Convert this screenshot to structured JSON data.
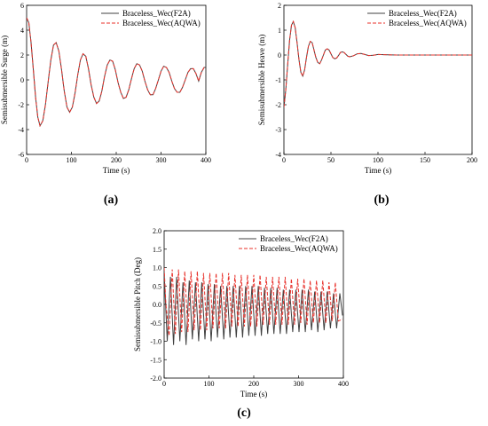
{
  "chart_data": [
    {
      "type": "line",
      "panel_label": "(a)",
      "xlabel": "Time (s)",
      "ylabel": "Semisubmersible Surge (m)",
      "xlim": [
        0,
        400
      ],
      "ylim": [
        -6,
        6
      ],
      "xticks": [
        0,
        100,
        200,
        300,
        400
      ],
      "yticks": [
        -6,
        -4,
        -2,
        0,
        2,
        4,
        6
      ],
      "legend_position": "top-right",
      "series": [
        {
          "name": "Braceless_Wec(F2A)",
          "color": "#404040",
          "style": "solid",
          "x": [
            0,
            5,
            10,
            15,
            20,
            25,
            30,
            36,
            42,
            48,
            54,
            60,
            66,
            72,
            78,
            84,
            90,
            96,
            102,
            108,
            114,
            120,
            126,
            132,
            138,
            144,
            150,
            156,
            162,
            168,
            174,
            180,
            186,
            192,
            198,
            204,
            210,
            216,
            222,
            228,
            234,
            240,
            246,
            252,
            258,
            264,
            270,
            276,
            282,
            288,
            294,
            300,
            306,
            312,
            318,
            324,
            330,
            336,
            342,
            348,
            354,
            360,
            366,
            372,
            378,
            384,
            390,
            396,
            400
          ],
          "y": [
            5.0,
            4.6,
            3.0,
            0.8,
            -1.4,
            -3.0,
            -3.7,
            -3.3,
            -2.0,
            -0.2,
            1.6,
            2.8,
            3.0,
            2.3,
            0.8,
            -0.9,
            -2.2,
            -2.6,
            -2.2,
            -1.1,
            0.4,
            1.6,
            2.1,
            1.9,
            0.9,
            -0.4,
            -1.4,
            -1.9,
            -1.7,
            -0.9,
            0.3,
            1.2,
            1.6,
            1.5,
            0.8,
            -0.2,
            -1.0,
            -1.5,
            -1.4,
            -0.8,
            0.1,
            0.9,
            1.3,
            1.2,
            0.7,
            -0.1,
            -0.8,
            -1.2,
            -1.2,
            -0.7,
            0.0,
            0.7,
            1.1,
            1.0,
            0.6,
            -0.1,
            -0.7,
            -1.0,
            -1.0,
            -0.6,
            0.0,
            0.6,
            0.9,
            0.9,
            0.5,
            -0.1,
            0.6,
            1.0,
            1.0
          ]
        },
        {
          "name": "Braceless_Wec(AQWA)",
          "color": "#e8302a",
          "style": "dashed",
          "x": [
            0,
            5,
            10,
            15,
            20,
            25,
            30,
            36,
            42,
            48,
            54,
            60,
            66,
            72,
            78,
            84,
            90,
            96,
            102,
            108,
            114,
            120,
            126,
            132,
            138,
            144,
            150,
            156,
            162,
            168,
            174,
            180,
            186,
            192,
            198,
            204,
            210,
            216,
            222,
            228,
            234,
            240,
            246,
            252,
            258,
            264,
            270,
            276,
            282,
            288,
            294,
            300,
            306,
            312,
            318,
            324,
            330,
            336,
            342,
            348,
            354,
            360,
            366,
            372,
            378,
            384,
            390,
            396,
            400
          ],
          "y": [
            5.0,
            4.6,
            3.0,
            0.8,
            -1.4,
            -3.0,
            -3.7,
            -3.3,
            -2.0,
            -0.2,
            1.6,
            2.8,
            3.0,
            2.3,
            0.8,
            -0.9,
            -2.2,
            -2.6,
            -2.2,
            -1.1,
            0.4,
            1.6,
            2.1,
            1.9,
            0.9,
            -0.4,
            -1.4,
            -1.9,
            -1.7,
            -0.9,
            0.3,
            1.2,
            1.6,
            1.5,
            0.8,
            -0.2,
            -1.0,
            -1.5,
            -1.4,
            -0.8,
            0.1,
            0.9,
            1.3,
            1.2,
            0.7,
            -0.1,
            -0.8,
            -1.2,
            -1.2,
            -0.7,
            0.0,
            0.7,
            1.1,
            1.0,
            0.6,
            -0.1,
            -0.7,
            -1.0,
            -1.0,
            -0.6,
            0.0,
            0.6,
            0.9,
            0.9,
            0.5,
            -0.1,
            0.6,
            1.0,
            1.0
          ]
        }
      ]
    },
    {
      "type": "line",
      "panel_label": "(b)",
      "xlabel": "Time (s)",
      "ylabel": "Semisubmersible Heave (m)",
      "xlim": [
        0,
        200
      ],
      "ylim": [
        -4,
        2
      ],
      "xticks": [
        0,
        50,
        100,
        150,
        200
      ],
      "yticks": [
        -4,
        -3,
        -2,
        -1,
        0,
        1,
        2
      ],
      "legend_position": "top-right",
      "series": [
        {
          "name": "Braceless_Wec(F2A)",
          "color": "#404040",
          "style": "solid",
          "x": [
            0,
            2,
            4,
            6,
            8,
            10,
            12,
            14,
            16,
            18,
            20,
            22,
            24,
            26,
            28,
            30,
            32,
            34,
            36,
            38,
            40,
            42,
            44,
            46,
            48,
            50,
            52,
            54,
            56,
            58,
            60,
            62,
            64,
            66,
            68,
            70,
            74,
            78,
            82,
            86,
            90,
            95,
            100,
            110,
            120,
            130,
            140,
            150,
            160,
            170,
            180,
            190,
            200
          ],
          "y": [
            -2.1,
            -1.4,
            -0.4,
            0.6,
            1.2,
            1.35,
            1.1,
            0.5,
            -0.2,
            -0.7,
            -0.85,
            -0.6,
            -0.1,
            0.35,
            0.55,
            0.5,
            0.2,
            -0.1,
            -0.3,
            -0.35,
            -0.2,
            0.0,
            0.2,
            0.25,
            0.2,
            0.05,
            -0.1,
            -0.15,
            -0.12,
            -0.02,
            0.1,
            0.13,
            0.1,
            0.02,
            -0.05,
            -0.07,
            -0.03,
            0.05,
            0.06,
            0.02,
            -0.02,
            -0.01,
            0.02,
            0.01,
            0.0,
            0.0,
            0.0,
            0.0,
            0.0,
            0.0,
            0.0,
            0.0,
            0.0
          ]
        },
        {
          "name": "Braceless_Wec(AQWA)",
          "color": "#e8302a",
          "style": "dashed",
          "x": [
            0,
            2,
            4,
            6,
            8,
            10,
            12,
            14,
            16,
            18,
            20,
            22,
            24,
            26,
            28,
            30,
            32,
            34,
            36,
            38,
            40,
            42,
            44,
            46,
            48,
            50,
            52,
            54,
            56,
            58,
            60,
            62,
            64,
            66,
            68,
            70,
            74,
            78,
            82,
            86,
            90,
            95,
            100,
            110,
            120,
            130,
            140,
            150,
            160,
            170,
            180,
            190,
            200
          ],
          "y": [
            -2.1,
            -1.4,
            -0.4,
            0.6,
            1.2,
            1.35,
            1.1,
            0.5,
            -0.2,
            -0.7,
            -0.85,
            -0.6,
            -0.1,
            0.35,
            0.55,
            0.5,
            0.2,
            -0.1,
            -0.3,
            -0.35,
            -0.2,
            0.0,
            0.2,
            0.25,
            0.2,
            0.05,
            -0.1,
            -0.15,
            -0.12,
            -0.02,
            0.1,
            0.13,
            0.1,
            0.02,
            -0.05,
            -0.07,
            -0.03,
            0.05,
            0.06,
            0.02,
            -0.02,
            -0.01,
            0.02,
            0.01,
            0.0,
            0.0,
            0.0,
            0.0,
            0.0,
            0.0,
            0.0,
            0.0,
            0.0
          ]
        }
      ]
    },
    {
      "type": "line",
      "panel_label": "(c)",
      "xlabel": "Time (s)",
      "ylabel": "Semisubmersible Pitch (Deg)",
      "xlim": [
        0,
        400
      ],
      "ylim": [
        -2.0,
        2.0
      ],
      "xticks": [
        0,
        100,
        200,
        300,
        400
      ],
      "yticks": [
        -2.0,
        -1.5,
        -1.0,
        -0.5,
        0.0,
        0.5,
        1.0,
        1.5,
        2.0
      ],
      "legend_position": "top-right",
      "series": [
        {
          "name": "Braceless_Wec(F2A)",
          "color": "#404040",
          "style": "solid",
          "x": [
            0,
            7,
            14,
            21,
            28,
            35,
            42,
            49,
            56,
            63,
            70,
            77,
            84,
            91,
            98,
            105,
            112,
            119,
            126,
            133,
            140,
            147,
            154,
            161,
            168,
            175,
            182,
            189,
            196,
            203,
            210,
            217,
            224,
            231,
            238,
            245,
            252,
            259,
            266,
            273,
            280,
            287,
            294,
            301,
            308,
            315,
            322,
            329,
            336,
            343,
            350,
            357,
            364,
            371,
            378,
            385,
            392,
            398
          ],
          "y": [
            0.85,
            -1.0,
            0.75,
            -1.1,
            0.75,
            -1.0,
            0.6,
            -1.1,
            0.65,
            -0.95,
            0.6,
            -1.0,
            0.6,
            -0.95,
            0.55,
            -1.0,
            0.55,
            -0.9,
            0.5,
            -0.95,
            0.5,
            -0.9,
            0.5,
            -0.9,
            0.5,
            -0.9,
            0.5,
            -0.85,
            0.5,
            -0.85,
            0.5,
            -0.85,
            0.45,
            -0.8,
            0.45,
            -0.8,
            0.45,
            -0.8,
            0.4,
            -0.8,
            0.4,
            -0.75,
            0.4,
            -0.75,
            0.4,
            -0.75,
            0.4,
            -0.7,
            0.35,
            -0.75,
            0.35,
            -0.7,
            0.35,
            -0.65,
            0.3,
            -0.65,
            0.3,
            -0.3
          ]
        },
        {
          "name": "Braceless_Wec(AQWA)",
          "color": "#e8302a",
          "style": "dashed",
          "x": [
            0,
            4,
            11,
            18,
            25,
            32,
            39,
            46,
            53,
            60,
            67,
            74,
            81,
            88,
            95,
            102,
            109,
            116,
            123,
            130,
            137,
            144,
            151,
            158,
            165,
            172,
            179,
            186,
            193,
            200,
            207,
            214,
            221,
            228,
            235,
            242,
            249,
            256,
            263,
            270,
            277,
            284,
            291,
            298,
            305,
            312,
            319,
            326,
            333,
            340,
            347,
            354,
            361,
            368,
            375,
            382,
            389,
            398
          ],
          "y": [
            1.0,
            0.0,
            -0.85,
            0.95,
            -0.8,
            0.95,
            -0.75,
            0.9,
            -0.75,
            0.9,
            -0.7,
            0.9,
            -0.7,
            0.85,
            -0.7,
            0.85,
            -0.65,
            0.85,
            -0.65,
            0.85,
            -0.65,
            0.85,
            -0.6,
            0.8,
            -0.6,
            0.8,
            -0.6,
            0.8,
            -0.6,
            0.8,
            -0.6,
            0.8,
            -0.55,
            0.75,
            -0.55,
            0.75,
            -0.55,
            0.75,
            -0.55,
            0.75,
            -0.55,
            0.7,
            -0.55,
            0.7,
            -0.5,
            0.7,
            -0.55,
            0.65,
            -0.5,
            0.65,
            -0.5,
            0.65,
            -0.5,
            0.6,
            -0.45,
            0.6,
            -0.45,
            -0.4
          ]
        }
      ]
    }
  ]
}
